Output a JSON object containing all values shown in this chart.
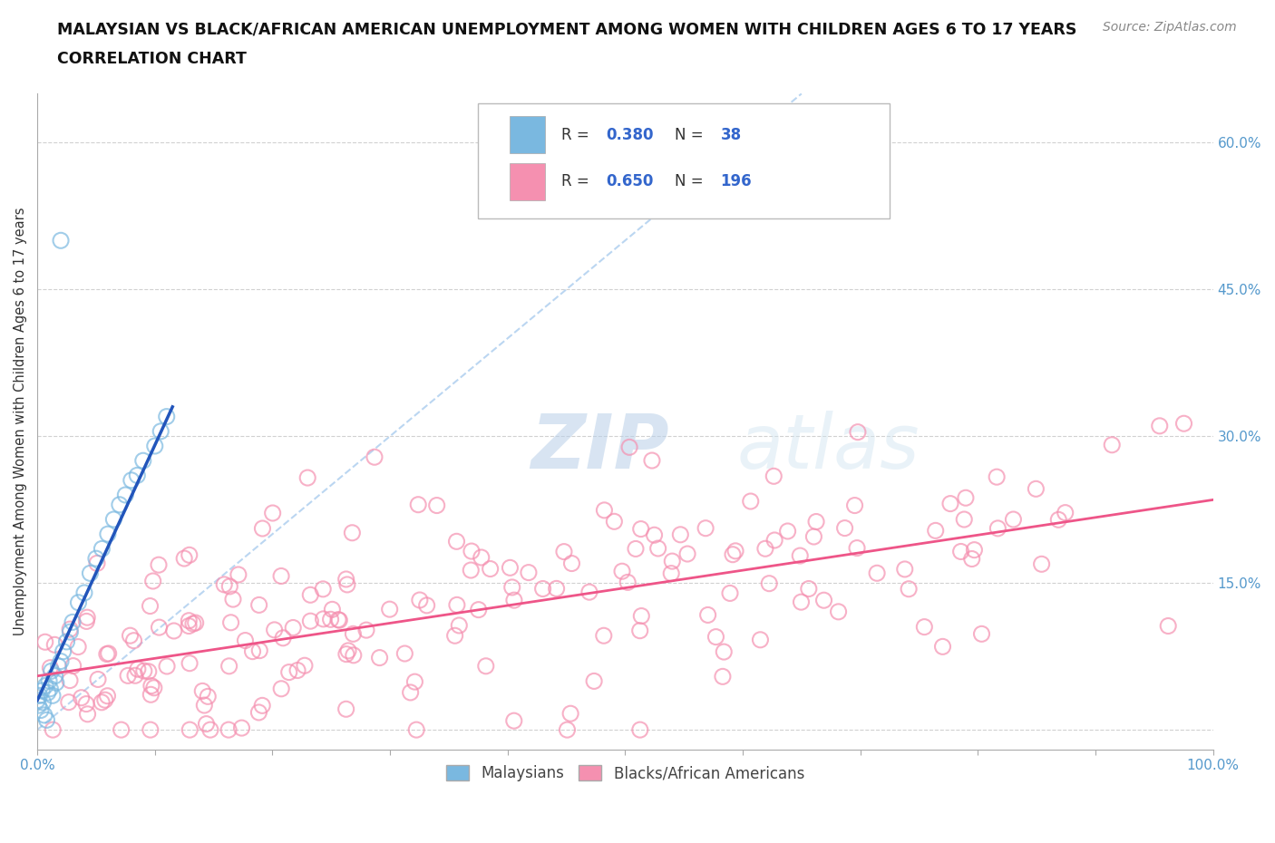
{
  "title_line1": "MALAYSIAN VS BLACK/AFRICAN AMERICAN UNEMPLOYMENT AMONG WOMEN WITH CHILDREN AGES 6 TO 17 YEARS",
  "title_line2": "CORRELATION CHART",
  "source_text": "Source: ZipAtlas.com",
  "ylabel": "Unemployment Among Women with Children Ages 6 to 17 years",
  "xlim": [
    0,
    1.0
  ],
  "ylim": [
    -0.02,
    0.65
  ],
  "grid_color": "#cccccc",
  "background_color": "#ffffff",
  "malaysian_color": "#7ab8e0",
  "black_color": "#f590b0",
  "trend_blue": "#2255bb",
  "trend_pink": "#ee5588",
  "diag_color": "#aaccee",
  "R_malaysian": 0.38,
  "N_malaysian": 38,
  "R_black": 0.65,
  "N_black": 196,
  "tick_color": "#5599cc",
  "label_color": "#333333",
  "source_color": "#888888"
}
